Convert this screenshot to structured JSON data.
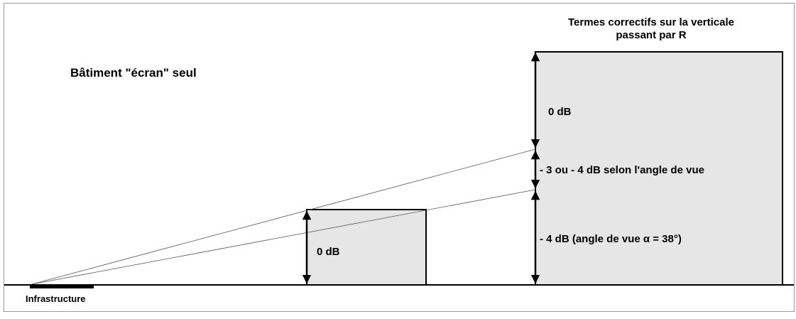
{
  "title": "Bâtiment \"écran\" seul",
  "right_title": {
    "line1": "Termes correctifs sur la verticale",
    "line2": "passant par R"
  },
  "labels": {
    "small_building": "0 dB",
    "tall_top": "0 dB",
    "tall_middle": "- 3 ou - 4 dB selon l'angle de vue",
    "tall_bottom": "- 4 dB  (angle de vue α = 38°)",
    "source": "Infrastructure"
  },
  "colors": {
    "building_fill": "#e6e6e6",
    "stroke": "#000000",
    "ray": "#555555",
    "reference_line": "#aaaaaa"
  }
}
